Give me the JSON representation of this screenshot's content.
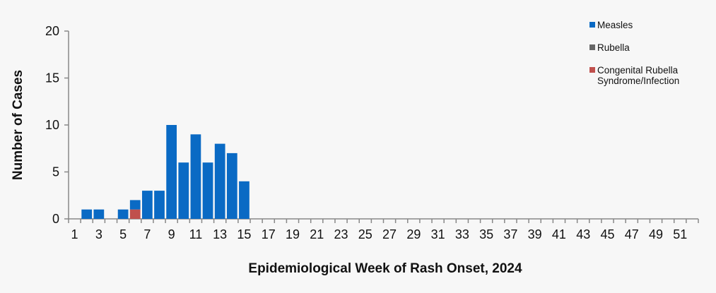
{
  "chart_data": {
    "type": "bar",
    "stacked": true,
    "title": "",
    "xlabel": "Epidemiological Week of Rash Onset, 2024",
    "ylabel": "Number of Cases",
    "ylim": [
      0,
      20
    ],
    "yticks": [
      0,
      5,
      10,
      15,
      20
    ],
    "x": [
      1,
      2,
      3,
      4,
      5,
      6,
      7,
      8,
      9,
      10,
      11,
      12,
      13,
      14,
      15,
      16,
      17,
      18,
      19,
      20,
      21,
      22,
      23,
      24,
      25,
      26,
      27,
      28,
      29,
      30,
      31,
      32,
      33,
      34,
      35,
      36,
      37,
      38,
      39,
      40,
      41,
      42,
      43,
      44,
      45,
      46,
      47,
      48,
      49,
      50,
      51,
      52
    ],
    "xtick_labels": [
      "1",
      "3",
      "5",
      "7",
      "9",
      "11",
      "13",
      "15",
      "17",
      "19",
      "21",
      "23",
      "25",
      "27",
      "29",
      "31",
      "33",
      "35",
      "37",
      "39",
      "41",
      "43",
      "45",
      "47",
      "49",
      "51"
    ],
    "legend_position": "top-right",
    "series": [
      {
        "name": "Measles",
        "color": "#0a6ac4",
        "values": [
          0,
          1,
          1,
          0,
          1,
          1,
          3,
          3,
          10,
          6,
          9,
          6,
          8,
          7,
          4,
          0,
          0,
          0,
          0,
          0,
          0,
          0,
          0,
          0,
          0,
          0,
          0,
          0,
          0,
          0,
          0,
          0,
          0,
          0,
          0,
          0,
          0,
          0,
          0,
          0,
          0,
          0,
          0,
          0,
          0,
          0,
          0,
          0,
          0,
          0,
          0,
          0
        ]
      },
      {
        "name": "Rubella",
        "color": "#666666",
        "values": [
          0,
          0,
          0,
          0,
          0,
          0,
          0,
          0,
          0,
          0,
          0,
          0,
          0,
          0,
          0,
          0,
          0,
          0,
          0,
          0,
          0,
          0,
          0,
          0,
          0,
          0,
          0,
          0,
          0,
          0,
          0,
          0,
          0,
          0,
          0,
          0,
          0,
          0,
          0,
          0,
          0,
          0,
          0,
          0,
          0,
          0,
          0,
          0,
          0,
          0,
          0,
          0
        ]
      },
      {
        "name": "Congenital Rubella Syndrome/Infection",
        "name_lines": [
          "Congenital Rubella",
          "Syndrome/Infection"
        ],
        "color": "#c0504d",
        "values": [
          0,
          0,
          0,
          0,
          0,
          1,
          0,
          0,
          0,
          0,
          0,
          0,
          0,
          0,
          0,
          0,
          0,
          0,
          0,
          0,
          0,
          0,
          0,
          0,
          0,
          0,
          0,
          0,
          0,
          0,
          0,
          0,
          0,
          0,
          0,
          0,
          0,
          0,
          0,
          0,
          0,
          0,
          0,
          0,
          0,
          0,
          0,
          0,
          0,
          0,
          0,
          0
        ]
      }
    ]
  }
}
